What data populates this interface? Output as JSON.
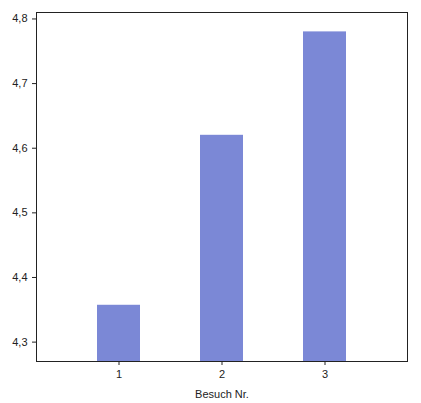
{
  "chart_data": {
    "type": "bar",
    "x_label": "Besuch Nr.",
    "categories": [
      "1",
      "2",
      "3"
    ],
    "values": [
      4.357,
      4.62,
      4.78
    ],
    "color": "#7b88d6",
    "ylim": [
      4.27,
      4.81
    ],
    "yticks": [
      {
        "value": 4.3,
        "label": "4,3"
      },
      {
        "value": 4.4,
        "label": "4,4"
      },
      {
        "value": 4.5,
        "label": "4,5"
      },
      {
        "value": 4.6,
        "label": "4,6"
      },
      {
        "value": 4.7,
        "label": "4,7"
      },
      {
        "value": 4.8,
        "label": "4,8"
      }
    ],
    "grid": false
  }
}
